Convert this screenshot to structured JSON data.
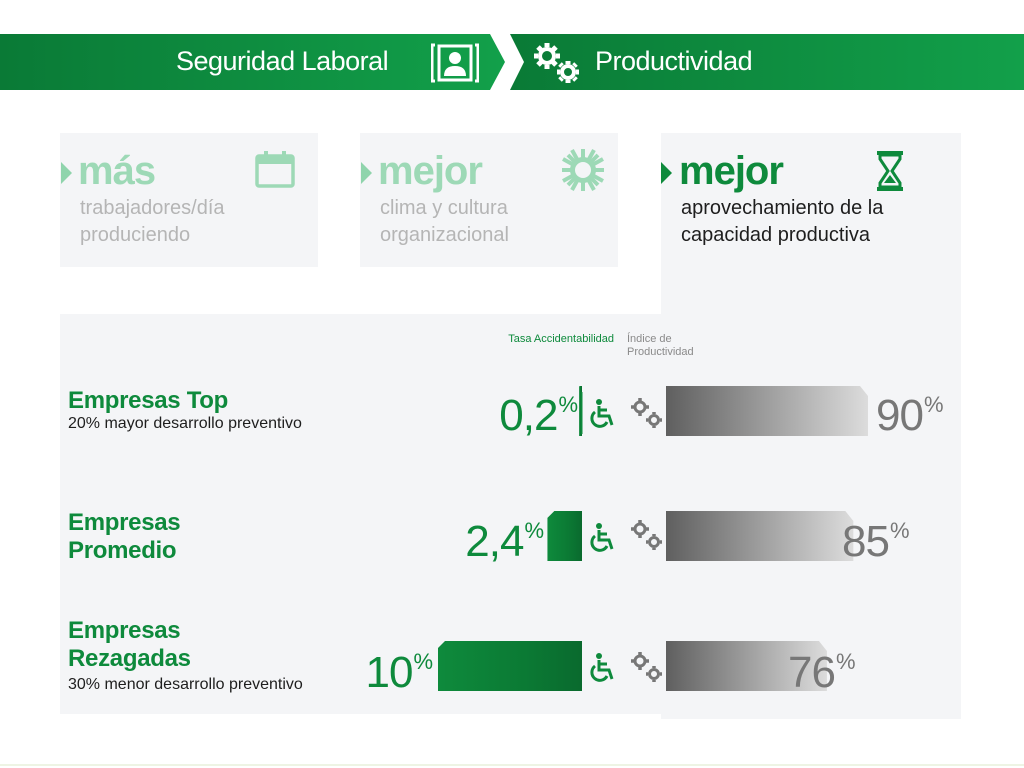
{
  "header": {
    "title_left": "Seguridad Laboral",
    "title_right": "Productividad",
    "icon_left": "person-frame-icon",
    "icon_right": "gears-icon"
  },
  "cards": [
    {
      "head": "más",
      "text": "trabajadores/día produciendo",
      "icon": "calendar-icon"
    },
    {
      "head": "mejor",
      "text": "clima y cultura organizacional",
      "icon": "sun-icon"
    },
    {
      "head": "mejor",
      "text": "aprovechamiento de la capacidad productiva",
      "icon": "hourglass-icon"
    }
  ],
  "chart_data": {
    "type": "bar",
    "orientation": "horizontal",
    "columns": [
      "Tasa Accidentabilidad",
      "Índice de Productividad"
    ],
    "categories": [
      {
        "name": "Empresas Top",
        "subtitle": "20% mayor desarrollo preventivo"
      },
      {
        "name": "Empresas Promedio",
        "subtitle": ""
      },
      {
        "name": "Empresas Rezagadas",
        "subtitle": "30% menor desarrollo  preventivo"
      }
    ],
    "series": [
      {
        "name": "Tasa Accidentabilidad",
        "values": [
          0.2,
          2.4,
          10
        ],
        "labels": [
          "0,2",
          "2,4",
          "10"
        ],
        "unit": "%",
        "color": "#0e8a3c"
      },
      {
        "name": "Índice de Productividad",
        "values": [
          90,
          85,
          76
        ],
        "labels": [
          "90",
          "85",
          "76"
        ],
        "unit": "%",
        "color": "#777777"
      }
    ],
    "tasa_max": 10,
    "indice_range": [
      60,
      90
    ]
  },
  "colors": {
    "brand_green": "#0e8a3c",
    "light_green": "#9dd9b6",
    "grey": "#777777"
  }
}
